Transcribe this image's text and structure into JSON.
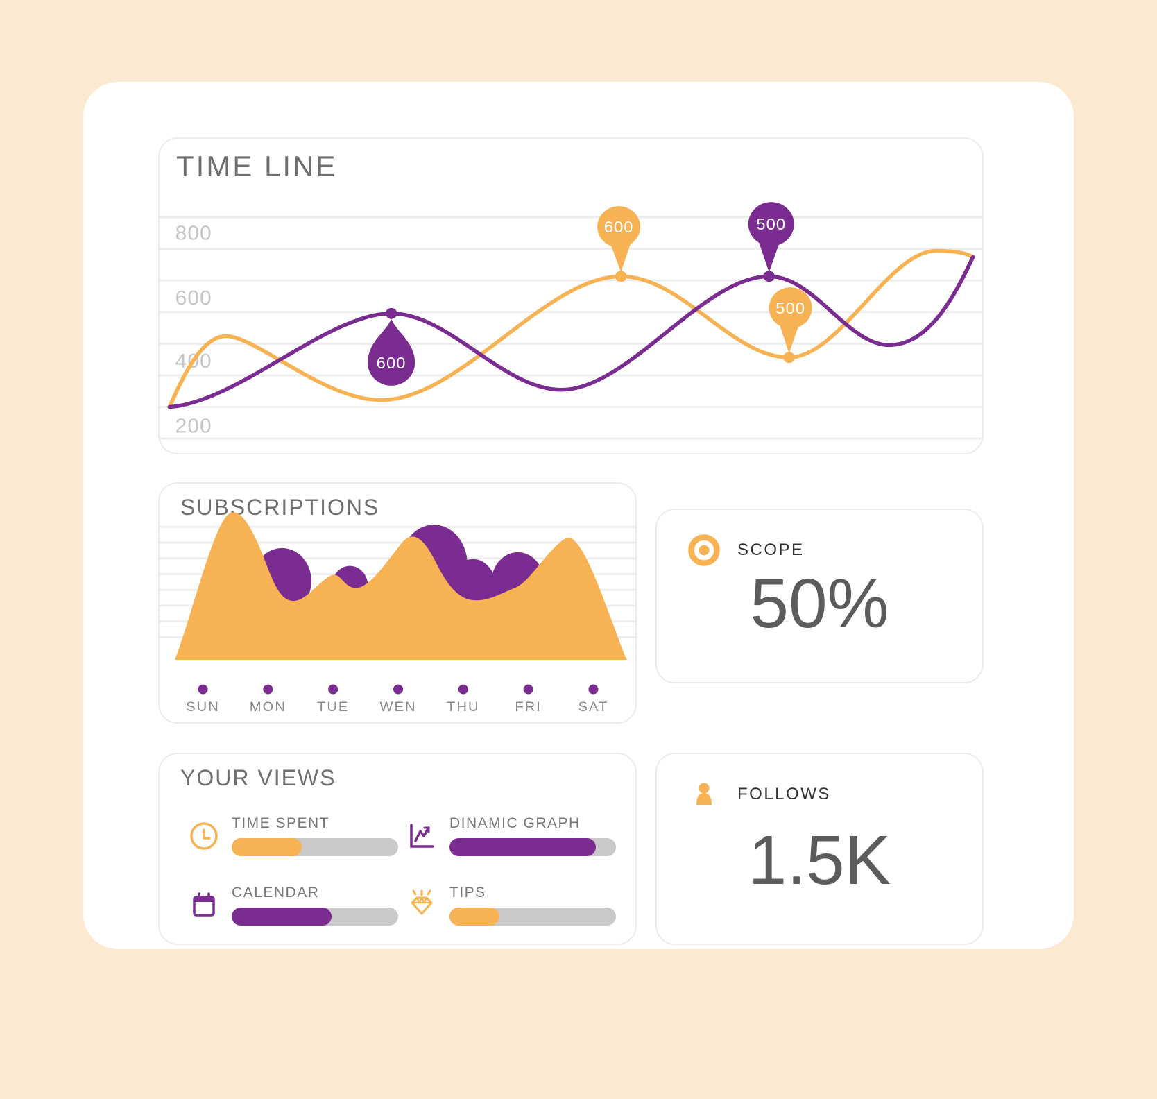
{
  "page": {
    "background": "#FBE9D2",
    "card_background": "#FFFFFF"
  },
  "colors": {
    "orange": "#F7B254",
    "purple": "#7A2C90",
    "track": "#C9C9C9",
    "grid": "#EDEDED",
    "title_gray": "#6F6F6F",
    "tick_gray": "#C5C5C5",
    "day_gray": "#8A8A8A",
    "stat_label": "#333333",
    "stat_value": "#5C5C5C"
  },
  "timeline": {
    "title": "TIME LINE",
    "y_ticks": [
      "800",
      "600",
      "400",
      "200"
    ],
    "markers": [
      {
        "label": "600",
        "series": "purple",
        "shape": "teardrop-up"
      },
      {
        "label": "600",
        "series": "orange",
        "shape": "pin-down"
      },
      {
        "label": "500",
        "series": "purple",
        "shape": "pin-down"
      },
      {
        "label": "500",
        "series": "orange",
        "shape": "pin-down"
      }
    ]
  },
  "subscriptions": {
    "title": "SUBSCRIPTIONS",
    "days": [
      "SUN",
      "MON",
      "TUE",
      "WEN",
      "THU",
      "FRI",
      "SAT"
    ]
  },
  "scope": {
    "label": "SCOPE",
    "value": "50%"
  },
  "follows": {
    "label": "FOLLOWS",
    "value": "1.5K"
  },
  "your_views": {
    "title": "YOUR VIEWS",
    "items": [
      {
        "label": "TIME SPENT",
        "icon": "clock-icon",
        "color": "orange",
        "progress": 42
      },
      {
        "label": "DINAMIC GRAPH",
        "icon": "line-graph-icon",
        "color": "purple",
        "progress": 88
      },
      {
        "label": "CALENDAR",
        "icon": "calendar-icon",
        "color": "purple",
        "progress": 60
      },
      {
        "label": "TIPS",
        "icon": "gem-icon",
        "color": "orange",
        "progress": 30
      }
    ]
  },
  "chart_data": [
    {
      "id": "timeline",
      "type": "line",
      "title": "TIME LINE",
      "xlabel": "",
      "ylabel": "",
      "ylim": [
        100,
        900
      ],
      "y_ticks": [
        800,
        600,
        400,
        200
      ],
      "grid": "horizontal",
      "legend_position": "none",
      "x": [
        0,
        1,
        2,
        3,
        4,
        5,
        6,
        7,
        8,
        9,
        10,
        11
      ],
      "series": [
        {
          "name": "purple",
          "color": "#7A2C90",
          "values": [
            300,
            310,
            380,
            520,
            600,
            540,
            450,
            540,
            650,
            560,
            480,
            660
          ]
        },
        {
          "name": "orange",
          "color": "#F7B254",
          "values": [
            300,
            480,
            420,
            330,
            360,
            480,
            600,
            540,
            460,
            500,
            620,
            660
          ]
        }
      ],
      "annotations": [
        {
          "series": "purple",
          "value": 600,
          "style": "teardrop-up"
        },
        {
          "series": "orange",
          "value": 600,
          "style": "pin-down"
        },
        {
          "series": "purple",
          "value": 500,
          "style": "pin-down"
        },
        {
          "series": "orange",
          "value": 500,
          "style": "pin-down"
        }
      ]
    },
    {
      "id": "subscriptions",
      "type": "area",
      "title": "SUBSCRIPTIONS",
      "categories": [
        "SUN",
        "MON",
        "TUE",
        "WEN",
        "THU",
        "FRI",
        "SAT"
      ],
      "grid": "horizontal",
      "series": [
        {
          "name": "purple",
          "color": "#7A2C90",
          "values": [
            40,
            70,
            55,
            60,
            90,
            65,
            30
          ]
        },
        {
          "name": "orange",
          "color": "#F7B254",
          "values": [
            95,
            45,
            60,
            80,
            45,
            55,
            85
          ]
        }
      ]
    },
    {
      "id": "your-views-progress",
      "type": "bar",
      "categories": [
        "TIME SPENT",
        "DINAMIC GRAPH",
        "CALENDAR",
        "TIPS"
      ],
      "values": [
        42,
        88,
        60,
        30
      ],
      "ylim": [
        0,
        100
      ]
    }
  ]
}
